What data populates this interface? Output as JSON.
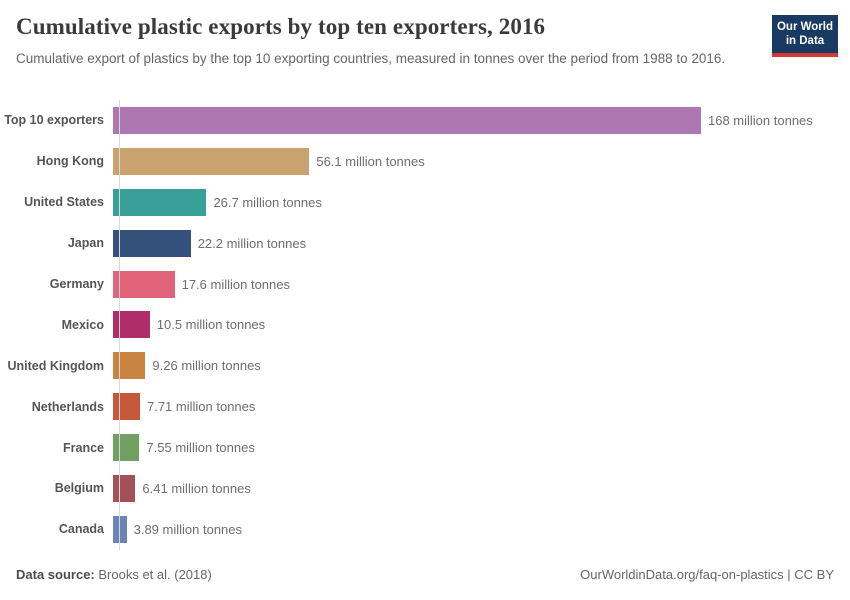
{
  "header": {
    "title": "Cumulative plastic exports by top ten exporters, 2016",
    "subtitle": "Cumulative export of plastics by the top 10 exporting countries, measured in tonnes over the period from 1988 to 2016.",
    "logo": {
      "line1": "Our World",
      "line2": "in Data",
      "bg_color": "#183a63",
      "accent_color": "#d73732"
    }
  },
  "chart_data": {
    "type": "bar",
    "orientation": "horizontal",
    "title": "Cumulative plastic exports by top ten exporters, 2016",
    "xlabel": "",
    "ylabel": "",
    "unit": "million tonnes",
    "xlim": [
      0,
      168
    ],
    "grid": false,
    "legend": "none",
    "categories": [
      "Top 10 exporters",
      "Hong Kong",
      "United States",
      "Japan",
      "Germany",
      "Mexico",
      "United Kingdom",
      "Netherlands",
      "France",
      "Belgium",
      "Canada"
    ],
    "values": [
      168,
      56.1,
      26.7,
      22.2,
      17.6,
      10.5,
      9.26,
      7.71,
      7.55,
      6.41,
      3.89
    ],
    "value_labels": [
      "168 million tonnes",
      "56.1 million tonnes",
      "26.7 million tonnes",
      "22.2 million tonnes",
      "17.6 million tonnes",
      "10.5 million tonnes",
      "9.26 million tonnes",
      "7.71 million tonnes",
      "7.55 million tonnes",
      "6.41 million tonnes",
      "3.89 million tonnes"
    ],
    "bar_colors": [
      "#ae77b2",
      "#c9a26f",
      "#38a099",
      "#33517a",
      "#e2647a",
      "#af2d68",
      "#ca8442",
      "#c45838",
      "#71a063",
      "#a2505a",
      "#6c84b5"
    ],
    "axis_color": "#d9d9d9"
  },
  "footer": {
    "source_label": "Data source:",
    "source_value": "Brooks et al. (2018)",
    "link": "OurWorldinData.org/faq-on-plastics | CC BY"
  }
}
